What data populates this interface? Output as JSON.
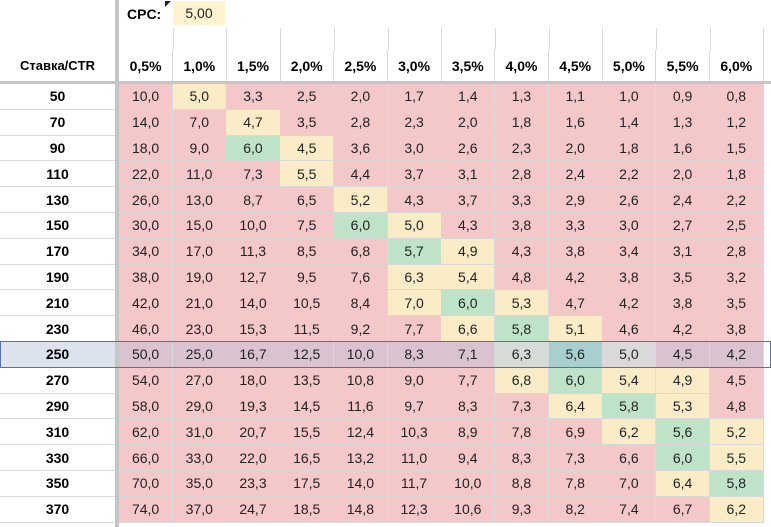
{
  "cpc": {
    "label": "CPC:",
    "value": "5,00"
  },
  "table": {
    "corner_label": "Ставка/CTR",
    "ctr_headers": [
      "0,5%",
      "1,0%",
      "1,5%",
      "2,0%",
      "2,5%",
      "3,0%",
      "3,5%",
      "4,0%",
      "4,5%",
      "5,0%",
      "5,5%",
      "6,0%"
    ],
    "selected_row_index": 10,
    "rows": [
      {
        "bid": "50",
        "values": [
          "10,0",
          "5,0",
          "3,3",
          "2,5",
          "2,0",
          "1,7",
          "1,4",
          "1,3",
          "1,1",
          "1,0",
          "0,9",
          "0,8"
        ],
        "colors": [
          "#f4c7c9",
          "#f9ecc6",
          "#f4c7c9",
          "#f4c7c9",
          "#f4c7c9",
          "#f4c7c9",
          "#f4c7c9",
          "#f4c7c9",
          "#f4c7c9",
          "#f4c7c9",
          "#f4c7c9",
          "#f4c7c9"
        ]
      },
      {
        "bid": "70",
        "values": [
          "14,0",
          "7,0",
          "4,7",
          "3,5",
          "2,8",
          "2,3",
          "2,0",
          "1,8",
          "1,6",
          "1,4",
          "1,3",
          "1,2"
        ],
        "colors": [
          "#f4c7c9",
          "#f4c7c9",
          "#f9ecc6",
          "#f4c7c9",
          "#f4c7c9",
          "#f4c7c9",
          "#f4c7c9",
          "#f4c7c9",
          "#f4c7c9",
          "#f4c7c9",
          "#f4c7c9",
          "#f4c7c9"
        ]
      },
      {
        "bid": "90",
        "values": [
          "18,0",
          "9,0",
          "6,0",
          "4,5",
          "3,6",
          "3,0",
          "2,6",
          "2,3",
          "2,0",
          "1,8",
          "1,6",
          "1,5"
        ],
        "colors": [
          "#f4c7c9",
          "#f4c7c9",
          "#bfe3c8",
          "#f9ecc6",
          "#f4c7c9",
          "#f4c7c9",
          "#f4c7c9",
          "#f4c7c9",
          "#f4c7c9",
          "#f4c7c9",
          "#f4c7c9",
          "#f4c7c9"
        ]
      },
      {
        "bid": "110",
        "values": [
          "22,0",
          "11,0",
          "7,3",
          "5,5",
          "4,4",
          "3,7",
          "3,1",
          "2,8",
          "2,4",
          "2,2",
          "2,0",
          "1,8"
        ],
        "colors": [
          "#f4c7c9",
          "#f4c7c9",
          "#f4c7c9",
          "#f9ecc6",
          "#f4c7c9",
          "#f4c7c9",
          "#f4c7c9",
          "#f4c7c9",
          "#f4c7c9",
          "#f4c7c9",
          "#f4c7c9",
          "#f4c7c9"
        ]
      },
      {
        "bid": "130",
        "values": [
          "26,0",
          "13,0",
          "8,7",
          "6,5",
          "5,2",
          "4,3",
          "3,7",
          "3,3",
          "2,9",
          "2,6",
          "2,4",
          "2,2"
        ],
        "colors": [
          "#f4c7c9",
          "#f4c7c9",
          "#f4c7c9",
          "#f4c7c9",
          "#f9ecc6",
          "#f4c7c9",
          "#f4c7c9",
          "#f4c7c9",
          "#f4c7c9",
          "#f4c7c9",
          "#f4c7c9",
          "#f4c7c9"
        ]
      },
      {
        "bid": "150",
        "values": [
          "30,0",
          "15,0",
          "10,0",
          "7,5",
          "6,0",
          "5,0",
          "4,3",
          "3,8",
          "3,3",
          "3,0",
          "2,7",
          "2,5"
        ],
        "colors": [
          "#f4c7c9",
          "#f4c7c9",
          "#f4c7c9",
          "#f4c7c9",
          "#bfe3c8",
          "#f9ecc6",
          "#f4c7c9",
          "#f4c7c9",
          "#f4c7c9",
          "#f4c7c9",
          "#f4c7c9",
          "#f4c7c9"
        ]
      },
      {
        "bid": "170",
        "values": [
          "34,0",
          "17,0",
          "11,3",
          "8,5",
          "6,8",
          "5,7",
          "4,9",
          "4,3",
          "3,8",
          "3,4",
          "3,1",
          "2,8"
        ],
        "colors": [
          "#f4c7c9",
          "#f4c7c9",
          "#f4c7c9",
          "#f4c7c9",
          "#f4c7c9",
          "#bfe3c8",
          "#f9ecc6",
          "#f4c7c9",
          "#f4c7c9",
          "#f4c7c9",
          "#f4c7c9",
          "#f4c7c9"
        ]
      },
      {
        "bid": "190",
        "values": [
          "38,0",
          "19,0",
          "12,7",
          "9,5",
          "7,6",
          "6,3",
          "5,4",
          "4,8",
          "4,2",
          "3,8",
          "3,5",
          "3,2"
        ],
        "colors": [
          "#f4c7c9",
          "#f4c7c9",
          "#f4c7c9",
          "#f4c7c9",
          "#f4c7c9",
          "#f9ecc6",
          "#f9ecc6",
          "#f4c7c9",
          "#f4c7c9",
          "#f4c7c9",
          "#f4c7c9",
          "#f4c7c9"
        ]
      },
      {
        "bid": "210",
        "values": [
          "42,0",
          "21,0",
          "14,0",
          "10,5",
          "8,4",
          "7,0",
          "6,0",
          "5,3",
          "4,7",
          "4,2",
          "3,8",
          "3,5"
        ],
        "colors": [
          "#f4c7c9",
          "#f4c7c9",
          "#f4c7c9",
          "#f4c7c9",
          "#f4c7c9",
          "#f9ecc6",
          "#bfe3c8",
          "#f9ecc6",
          "#f4c7c9",
          "#f4c7c9",
          "#f4c7c9",
          "#f4c7c9"
        ]
      },
      {
        "bid": "230",
        "values": [
          "46,0",
          "23,0",
          "15,3",
          "11,5",
          "9,2",
          "7,7",
          "6,6",
          "5,8",
          "5,1",
          "4,6",
          "4,2",
          "3,8"
        ],
        "colors": [
          "#f4c7c9",
          "#f4c7c9",
          "#f4c7c9",
          "#f4c7c9",
          "#f4c7c9",
          "#f4c7c9",
          "#f9ecc6",
          "#bfe3c8",
          "#f9ecc6",
          "#f4c7c9",
          "#f4c7c9",
          "#f4c7c9"
        ]
      },
      {
        "bid": "250",
        "values": [
          "50,0",
          "25,0",
          "16,7",
          "12,5",
          "10,0",
          "8,3",
          "7,1",
          "6,3",
          "5,6",
          "5,0",
          "4,5",
          "4,2"
        ],
        "colors": [
          "#d9c3d1",
          "#d9c3d1",
          "#d9c3d1",
          "#d9c3d1",
          "#d9c3d1",
          "#d9c3d1",
          "#d9c3d1",
          "#d5dbd6",
          "#a8cfd0",
          "#dad8da",
          "#d9c3d1",
          "#d9c3d1"
        ]
      },
      {
        "bid": "270",
        "values": [
          "54,0",
          "27,0",
          "18,0",
          "13,5",
          "10,8",
          "9,0",
          "7,7",
          "6,8",
          "6,0",
          "5,4",
          "4,9",
          "4,5"
        ],
        "colors": [
          "#f4c7c9",
          "#f4c7c9",
          "#f4c7c9",
          "#f4c7c9",
          "#f4c7c9",
          "#f4c7c9",
          "#f4c7c9",
          "#f9ecc6",
          "#bfe3c8",
          "#f9ecc6",
          "#f9ecc6",
          "#f4c7c9"
        ]
      },
      {
        "bid": "290",
        "values": [
          "58,0",
          "29,0",
          "19,3",
          "14,5",
          "11,6",
          "9,7",
          "8,3",
          "7,3",
          "6,4",
          "5,8",
          "5,3",
          "4,8"
        ],
        "colors": [
          "#f4c7c9",
          "#f4c7c9",
          "#f4c7c9",
          "#f4c7c9",
          "#f4c7c9",
          "#f4c7c9",
          "#f4c7c9",
          "#f4c7c9",
          "#f9ecc6",
          "#bfe3c8",
          "#f9ecc6",
          "#f4c7c9"
        ]
      },
      {
        "bid": "310",
        "values": [
          "62,0",
          "31,0",
          "20,7",
          "15,5",
          "12,4",
          "10,3",
          "8,9",
          "7,8",
          "6,9",
          "6,2",
          "5,6",
          "5,2"
        ],
        "colors": [
          "#f4c7c9",
          "#f4c7c9",
          "#f4c7c9",
          "#f4c7c9",
          "#f4c7c9",
          "#f4c7c9",
          "#f4c7c9",
          "#f4c7c9",
          "#f4c7c9",
          "#f9ecc6",
          "#bfe3c8",
          "#f9ecc6"
        ]
      },
      {
        "bid": "330",
        "values": [
          "66,0",
          "33,0",
          "22,0",
          "16,5",
          "13,2",
          "11,0",
          "9,4",
          "8,3",
          "7,3",
          "6,6",
          "6,0",
          "5,5"
        ],
        "colors": [
          "#f4c7c9",
          "#f4c7c9",
          "#f4c7c9",
          "#f4c7c9",
          "#f4c7c9",
          "#f4c7c9",
          "#f4c7c9",
          "#f4c7c9",
          "#f4c7c9",
          "#f4c7c9",
          "#bfe3c8",
          "#f9ecc6"
        ]
      },
      {
        "bid": "350",
        "values": [
          "70,0",
          "35,0",
          "23,3",
          "17,5",
          "14,0",
          "11,7",
          "10,0",
          "8,8",
          "7,8",
          "7,0",
          "6,4",
          "5,8"
        ],
        "colors": [
          "#f4c7c9",
          "#f4c7c9",
          "#f4c7c9",
          "#f4c7c9",
          "#f4c7c9",
          "#f4c7c9",
          "#f4c7c9",
          "#f4c7c9",
          "#f4c7c9",
          "#f4c7c9",
          "#f9ecc6",
          "#bfe3c8"
        ]
      },
      {
        "bid": "370",
        "values": [
          "74,0",
          "37,0",
          "24,7",
          "18,5",
          "14,8",
          "12,3",
          "10,6",
          "9,3",
          "8,2",
          "7,4",
          "6,7",
          "6,2"
        ],
        "colors": [
          "#f4c7c9",
          "#f4c7c9",
          "#f4c7c9",
          "#f4c7c9",
          "#f4c7c9",
          "#f4c7c9",
          "#f4c7c9",
          "#f4c7c9",
          "#f4c7c9",
          "#f4c7c9",
          "#f4c7c9",
          "#f9ecc6"
        ]
      }
    ]
  }
}
